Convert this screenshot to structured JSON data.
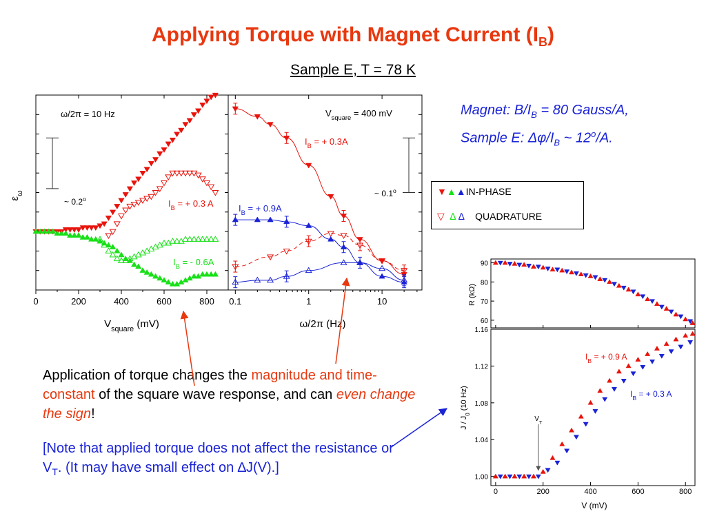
{
  "title": "Applying Torque with Magnet Current (I",
  "title_sub": "B",
  "title_end": ")",
  "subtitle": "Sample E,   T = 78 K",
  "magnet_note": {
    "line1_a": "Magnet: B/I",
    "line1_sub": "B",
    "line1_b": " = 80 Gauss/A,",
    "line2_a": "Sample E: ",
    "line2_dphi": "Δφ",
    "line2_b": "/I",
    "line2_sub": "B",
    "line2_c": " ~ 12",
    "line2_sup": "o",
    "line2_d": "/A."
  },
  "legend": {
    "inphase_label": "IN-PHASE",
    "quadrature_label": "QUADRATURE",
    "colors": {
      "red": "#e8140c",
      "green": "#18e018",
      "blue": "#1a23d6"
    }
  },
  "body": {
    "p1_a": "Application of torque changes the ",
    "p1_red1": "magnitude and time-constant",
    "p1_b": " of the square wave response, and can ",
    "p1_red2": "even change the sign",
    "p1_c": "!",
    "p2_a": "[Note that applied torque does not affect the resistance or V",
    "p2_sub": "T",
    "p2_b": ".  (It may have small effect on ",
    "p2_delta": "∆",
    "p2_c": "J(V).]"
  },
  "chart_data": [
    {
      "id": "left",
      "type": "scatter",
      "xlabel": "V",
      "xlabel_sub": "square",
      "xlabel_unit": " (mV)",
      "ylabel": "ε",
      "ylabel_sub": "ω",
      "xlim": [
        0,
        900
      ],
      "ylim": [
        0,
        1
      ],
      "x_ticks": [
        0,
        200,
        400,
        600,
        800
      ],
      "y_ticks_shown": false,
      "annotation_freq": "ω/2π  = 10 Hz",
      "scalebar_label": "~ 0.2",
      "scalebar_sup": "o",
      "scalebar_range": [
        0.52,
        0.78
      ],
      "series_labels": [
        {
          "text_a": "I",
          "sub": "B",
          "text_b": " = + 0.3 A",
          "color": "#e8140c"
        },
        {
          "text_a": "I",
          "sub": "B",
          "text_b": " = - 0.6A",
          "color": "#18e018"
        }
      ],
      "series": [
        {
          "name": "I_B = +0.3 A in-phase",
          "marker": "tri-down-filled",
          "color": "#e8140c",
          "x": [
            0,
            20,
            40,
            60,
            80,
            100,
            120,
            140,
            160,
            180,
            200,
            220,
            240,
            260,
            280,
            300,
            320,
            340,
            360,
            380,
            400,
            420,
            440,
            460,
            480,
            500,
            520,
            540,
            560,
            580,
            600,
            620,
            640,
            660,
            680,
            700,
            720,
            740,
            760,
            780,
            800,
            820,
            840
          ],
          "y": [
            0.3,
            0.3,
            0.3,
            0.3,
            0.3,
            0.3,
            0.3,
            0.31,
            0.31,
            0.31,
            0.31,
            0.32,
            0.32,
            0.32,
            0.32,
            0.33,
            0.34,
            0.37,
            0.4,
            0.43,
            0.46,
            0.49,
            0.52,
            0.55,
            0.57,
            0.6,
            0.62,
            0.65,
            0.67,
            0.7,
            0.72,
            0.75,
            0.77,
            0.8,
            0.82,
            0.85,
            0.87,
            0.9,
            0.92,
            0.95,
            0.97,
            0.99,
            1.0
          ]
        },
        {
          "name": "I_B = +0.3 A quadrature",
          "marker": "tri-down-open",
          "color": "#e8140c",
          "x": [
            340,
            360,
            380,
            400,
            420,
            440,
            460,
            480,
            500,
            520,
            540,
            560,
            580,
            600,
            620,
            640,
            660,
            680,
            700,
            720,
            740,
            760,
            780,
            800,
            820,
            840
          ],
          "y": [
            0.28,
            0.3,
            0.34,
            0.38,
            0.41,
            0.43,
            0.44,
            0.45,
            0.46,
            0.47,
            0.48,
            0.5,
            0.52,
            0.55,
            0.58,
            0.6,
            0.6,
            0.6,
            0.6,
            0.6,
            0.6,
            0.59,
            0.57,
            0.55,
            0.53,
            0.5
          ]
        },
        {
          "name": "I_B = -0.6A in-phase",
          "marker": "tri-up-filled",
          "color": "#18e018",
          "x": [
            0,
            20,
            40,
            60,
            80,
            100,
            120,
            140,
            160,
            180,
            200,
            220,
            240,
            260,
            280,
            300,
            320,
            340,
            360,
            380,
            400,
            420,
            440,
            460,
            480,
            500,
            520,
            540,
            560,
            580,
            600,
            620,
            640,
            660,
            680,
            700,
            720,
            740,
            760,
            780,
            800,
            820,
            840
          ],
          "y": [
            0.3,
            0.3,
            0.3,
            0.3,
            0.3,
            0.29,
            0.29,
            0.29,
            0.28,
            0.28,
            0.28,
            0.27,
            0.27,
            0.26,
            0.26,
            0.25,
            0.24,
            0.23,
            0.22,
            0.2,
            0.18,
            0.16,
            0.15,
            0.13,
            0.12,
            0.1,
            0.09,
            0.08,
            0.07,
            0.06,
            0.05,
            0.04,
            0.03,
            0.03,
            0.04,
            0.05,
            0.06,
            0.07,
            0.07,
            0.08,
            0.08,
            0.08,
            0.08
          ]
        },
        {
          "name": "I_B = -0.6A quadrature",
          "marker": "tri-up-open",
          "color": "#18e018",
          "x": [
            300,
            320,
            340,
            360,
            380,
            400,
            420,
            440,
            460,
            480,
            500,
            520,
            540,
            560,
            580,
            600,
            620,
            640,
            660,
            680,
            700,
            720,
            740,
            760,
            780,
            800,
            820,
            840
          ],
          "y": [
            0.26,
            0.23,
            0.2,
            0.18,
            0.16,
            0.15,
            0.15,
            0.16,
            0.17,
            0.18,
            0.19,
            0.2,
            0.21,
            0.22,
            0.23,
            0.24,
            0.24,
            0.25,
            0.25,
            0.25,
            0.26,
            0.26,
            0.26,
            0.26,
            0.26,
            0.26,
            0.26,
            0.26
          ]
        }
      ]
    },
    {
      "id": "middle",
      "type": "scatter",
      "xscale": "log",
      "xlabel": "ω/2π   (Hz)",
      "xlim": [
        0.08,
        35
      ],
      "ylim": [
        0,
        1
      ],
      "x_ticks": [
        0.1,
        1,
        10
      ],
      "x_tick_labels": [
        "0.1",
        "1",
        "10"
      ],
      "annotation_a": "V",
      "annotation_sub": "square",
      "annotation_b": " = 400 mV",
      "scalebar_label": "~ 0.1",
      "scalebar_sup": "o",
      "scalebar_range": [
        0.5,
        0.78
      ],
      "series_labels": [
        {
          "text_a": "I",
          "sub": "B",
          "text_b": " = + 0.3A",
          "color": "#e8140c"
        },
        {
          "text_a": "I",
          "sub": "B",
          "text_b": " = + 0.9A",
          "color": "#1a23d6"
        }
      ],
      "series": [
        {
          "name": "I_B = +0.3A in-phase",
          "marker": "tri-down-filled",
          "color": "#e8140c",
          "x": [
            0.1,
            0.2,
            0.3,
            0.5,
            1,
            2,
            3,
            5,
            10,
            20
          ],
          "y": [
            0.93,
            0.89,
            0.85,
            0.78,
            0.64,
            0.48,
            0.38,
            0.26,
            0.15,
            0.08
          ]
        },
        {
          "name": "I_B = +0.3A quadrature",
          "marker": "tri-down-open",
          "color": "#e8140c",
          "x": [
            0.1,
            0.3,
            0.5,
            1,
            2,
            3,
            5,
            10,
            20
          ],
          "y": [
            0.12,
            0.17,
            0.2,
            0.25,
            0.29,
            0.28,
            0.23,
            0.15,
            0.1
          ]
        },
        {
          "name": "I_B = +0.9A in-phase",
          "marker": "tri-up-filled",
          "color": "#1a23d6",
          "x": [
            0.1,
            0.2,
            0.3,
            0.5,
            1,
            2,
            3,
            5,
            10,
            20
          ],
          "y": [
            0.36,
            0.36,
            0.36,
            0.35,
            0.33,
            0.26,
            0.22,
            0.14,
            0.07,
            0.04
          ]
        },
        {
          "name": "I_B = +0.9A quadrature",
          "marker": "tri-up-open",
          "color": "#1a23d6",
          "x": [
            0.1,
            0.2,
            0.3,
            0.5,
            1,
            3,
            5,
            10,
            20
          ],
          "y": [
            0.04,
            0.05,
            0.05,
            0.07,
            0.1,
            0.14,
            0.14,
            0.11,
            0.05
          ]
        }
      ]
    },
    {
      "id": "resistance",
      "type": "scatter",
      "ylabel": "R  (kΩ)",
      "xlim": [
        -20,
        840
      ],
      "ylim": [
        56,
        92
      ],
      "y_ticks": [
        60,
        70,
        80,
        90
      ],
      "series": [
        {
          "name": "I_B = + 0.9 A",
          "marker": "tri-up-filled",
          "color": "#e8140c",
          "x": [
            0,
            40,
            80,
            120,
            160,
            200,
            240,
            280,
            320,
            360,
            400,
            440,
            480,
            520,
            560,
            600,
            640,
            680,
            720,
            760,
            800,
            830
          ],
          "y": [
            90,
            90,
            89.5,
            89,
            88,
            87.5,
            86.5,
            86,
            85,
            84,
            83,
            81.5,
            80,
            78,
            76,
            73.5,
            71,
            68.5,
            66,
            63,
            60.5,
            58.5
          ]
        },
        {
          "name": "I_B = + 0.3 A",
          "marker": "tri-down-filled",
          "color": "#1a23d6",
          "x": [
            20,
            60,
            100,
            140,
            180,
            220,
            260,
            300,
            340,
            380,
            420,
            460,
            500,
            540,
            580,
            620,
            660,
            700,
            740,
            780,
            820
          ],
          "y": [
            90,
            89.5,
            89,
            88.5,
            88,
            87,
            86.5,
            85.5,
            84.5,
            83.5,
            82.5,
            81,
            79,
            77,
            75,
            72.5,
            70,
            67,
            64.5,
            62,
            59.5
          ]
        }
      ]
    },
    {
      "id": "current",
      "type": "scatter",
      "xlabel": "V  (mV)",
      "ylabel": "J / J",
      "ylabel_sub": "0",
      "ylabel_unit": "    (10 Hz)",
      "xlim": [
        -20,
        840
      ],
      "ylim": [
        0.99,
        1.16
      ],
      "x_ticks": [
        0,
        200,
        400,
        600,
        800
      ],
      "y_ticks": [
        1.0,
        1.04,
        1.08,
        1.12,
        1.16
      ],
      "y_tick_labels": [
        "1.00",
        "1.04",
        "1.08",
        "1.12",
        "1.16"
      ],
      "vt_label": "V",
      "vt_sub": "T",
      "vt_x": 180,
      "series_labels": [
        {
          "text_a": "I",
          "sub": "B",
          "text_b": " = + 0.9 A",
          "color": "#e8140c"
        },
        {
          "text_a": "I",
          "sub": "B",
          "text_b": " = + 0.3 A",
          "color": "#1a23d6"
        }
      ],
      "series": [
        {
          "name": "I_B = + 0.9 A",
          "marker": "tri-up-filled",
          "color": "#e8140c",
          "x": [
            0,
            40,
            80,
            120,
            160,
            200,
            240,
            280,
            320,
            360,
            400,
            440,
            480,
            520,
            560,
            600,
            640,
            680,
            720,
            760,
            800,
            830
          ],
          "y": [
            1.0,
            1.0,
            1.0,
            1.0,
            1.0,
            1.005,
            1.02,
            1.035,
            1.05,
            1.065,
            1.08,
            1.093,
            1.104,
            1.114,
            1.12,
            1.127,
            1.133,
            1.139,
            1.144,
            1.149,
            1.153,
            1.155
          ]
        },
        {
          "name": "I_B = + 0.3 A",
          "marker": "tri-down-filled",
          "color": "#1a23d6",
          "x": [
            20,
            60,
            100,
            140,
            180,
            220,
            260,
            300,
            340,
            380,
            420,
            460,
            500,
            540,
            580,
            620,
            660,
            700,
            740,
            780,
            820
          ],
          "y": [
            1.0,
            1.0,
            1.0,
            1.0,
            1.0,
            1.007,
            1.015,
            1.028,
            1.043,
            1.057,
            1.071,
            1.084,
            1.095,
            1.104,
            1.112,
            1.119,
            1.125,
            1.131,
            1.136,
            1.141,
            1.146
          ]
        }
      ]
    }
  ]
}
